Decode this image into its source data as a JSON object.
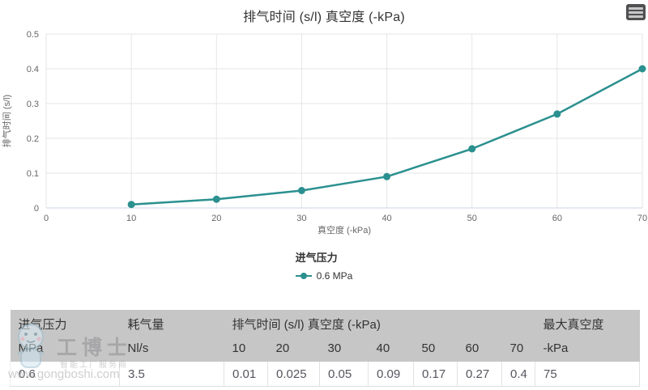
{
  "chart": {
    "title": "排气时间 (s/l) 真空度 (-kPa)",
    "context_menu_icon": "hamburger-icon"
  },
  "chart_data": {
    "type": "line",
    "x": [
      10,
      20,
      30,
      40,
      50,
      60,
      70
    ],
    "series": [
      {
        "name": "0.6 MPa",
        "values": [
          0.01,
          0.025,
          0.05,
          0.09,
          0.17,
          0.27,
          0.4
        ],
        "color": "#2b908f"
      }
    ],
    "title": "排气时间 (s/l) 真空度 (-kPa)",
    "xlabel": "真空度 (-kPa)",
    "ylabel": "排气时间 (s/l)",
    "xlim": [
      0,
      70
    ],
    "ylim": [
      0,
      0.5
    ],
    "x_ticks": [
      0,
      10,
      20,
      30,
      40,
      50,
      60,
      70
    ],
    "y_ticks": [
      0,
      0.1,
      0.2,
      0.3,
      0.4,
      0.5
    ],
    "grid": true,
    "legend_title": "进气压力",
    "legend_position": "bottom-center"
  },
  "legend": {
    "title": "进气压力",
    "items": [
      {
        "label": "0.6 MPa",
        "color": "#2b908f"
      }
    ]
  },
  "table": {
    "header_row1": [
      "进气压力",
      "耗气量",
      "排气时间 (s/l) 真空度 (-kPa)",
      "最大真空度"
    ],
    "header_row2": [
      "MPa",
      "Nl/s",
      "10",
      "20",
      "30",
      "40",
      "50",
      "60",
      "70",
      "-kPa"
    ],
    "rows": [
      [
        "0.6",
        "3.5",
        "0.01",
        "0.025",
        "0.05",
        "0.09",
        "0.17",
        "0.27",
        "0.4",
        "75"
      ]
    ]
  },
  "watermark": {
    "brand": "工博士",
    "tagline": "智能工厂服务商",
    "url": "www.gongboshi.com"
  },
  "colors": {
    "accent": "#2b908f",
    "grid": "#e6e6e6",
    "axis_line": "#ccd6eb",
    "label": "#666666",
    "table_header_bg": "#c6c6c6"
  }
}
